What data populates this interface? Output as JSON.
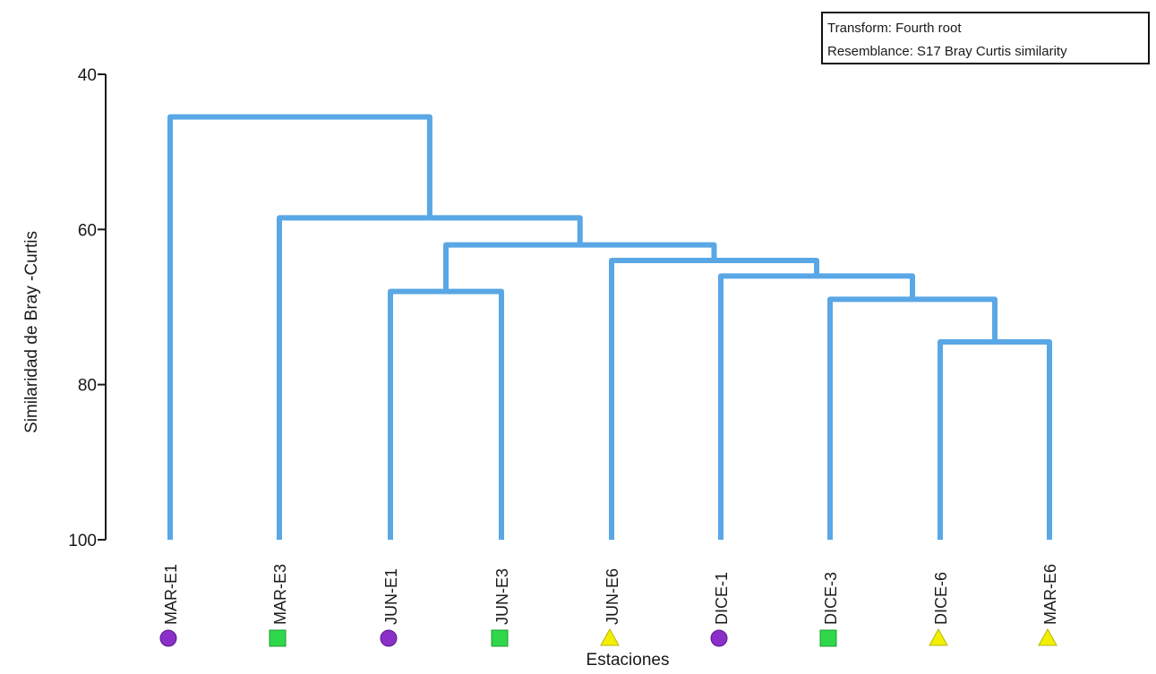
{
  "chart_data": {
    "type": "dendrogram",
    "xlabel": "Estaciones",
    "ylabel": "Similaridad de Bray -Curtis",
    "ylim": [
      40,
      100
    ],
    "yticks": [
      40,
      60,
      80,
      100
    ],
    "legend": {
      "placement": "top-right",
      "lines": [
        "Transform: Fourth root",
        "Resemblance: S17 Bray Curtis similarity"
      ]
    },
    "leaves": [
      {
        "label": "MAR-E1",
        "marker": "circle",
        "color": "#8a2fc8"
      },
      {
        "label": "MAR-E3",
        "marker": "square",
        "color": "#2ed84a"
      },
      {
        "label": "JUN-E1",
        "marker": "circle",
        "color": "#8a2fc8"
      },
      {
        "label": "JUN-E3",
        "marker": "square",
        "color": "#2ed84a"
      },
      {
        "label": "JUN-E6",
        "marker": "triangle",
        "color": "#f2f000"
      },
      {
        "label": "DICE-1",
        "marker": "circle",
        "color": "#8a2fc8"
      },
      {
        "label": "DICE-3",
        "marker": "square",
        "color": "#2ed84a"
      },
      {
        "label": "DICE-6",
        "marker": "triangle",
        "color": "#f2f000"
      },
      {
        "label": "MAR-E6",
        "marker": "triangle",
        "color": "#f2f000"
      }
    ],
    "merges": [
      {
        "left": "DICE-6",
        "right": "MAR-E6",
        "similarity": 74.5
      },
      {
        "left": "DICE-3",
        "right": "m1",
        "similarity": 69
      },
      {
        "left": "DICE-1",
        "right": "m2",
        "similarity": 66
      },
      {
        "left": "JUN-E6",
        "right": "m3",
        "similarity": 64
      },
      {
        "left": "JUN-E1",
        "right": "JUN-E3",
        "similarity": 68
      },
      {
        "left": "m5",
        "right": "m4",
        "similarity": 62
      },
      {
        "left": "MAR-E3",
        "right": "m6",
        "similarity": 58.5
      },
      {
        "left": "MAR-E1",
        "right": "m7",
        "similarity": 45.5
      }
    ],
    "colors": {
      "branch": "#5aa7e6",
      "axis": "#1a1a1a"
    }
  }
}
